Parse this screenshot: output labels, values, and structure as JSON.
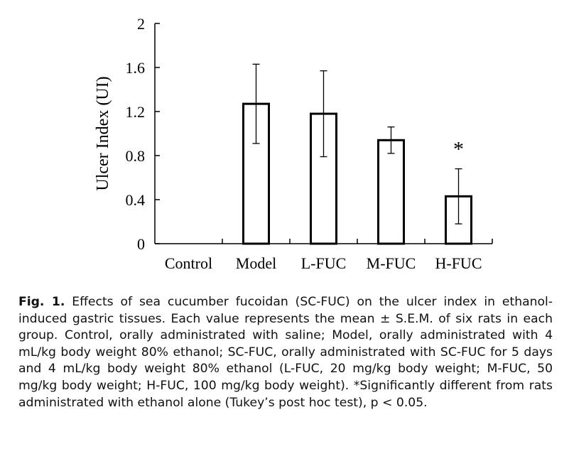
{
  "chart_data": {
    "type": "bar",
    "title": "",
    "xlabel": "",
    "ylabel": "Ulcer Index (UI)",
    "ylim": [
      0,
      2
    ],
    "yticks": [
      "0",
      "0.4",
      "0.8",
      "1.2",
      "1.6",
      "2"
    ],
    "categories": [
      "Control",
      "Model",
      "L-FUC",
      "M-FUC",
      "H-FUC"
    ],
    "values": [
      0,
      1.27,
      1.18,
      0.94,
      0.43
    ],
    "errors": [
      0,
      0.36,
      0.39,
      0.12,
      0.25
    ],
    "annotations": [
      "",
      "",
      "",
      "",
      "*"
    ],
    "bar_fill": "#ffffff",
    "bar_stroke": "#000000",
    "grid": false,
    "legend": "none"
  },
  "caption": {
    "label": "Fig. 1.",
    "text": "Effects of sea cucumber fucoidan (SC-FUC) on the ulcer index in ethanol-induced gastric tissues. Each value represents the mean ± S.E.M. of six rats in each group. Control, orally administrated with saline; Model, orally administrated with 4 mL/kg body weight 80% ethanol; SC-FUC, orally administrated with SC-FUC for 5 days and 4 mL/kg body weight 80% ethanol (L-FUC, 20 mg/kg body weight; M-FUC, 50 mg/kg body weight; H-FUC, 100 mg/kg body weight). *Significantly different from rats administrated with ethanol alone (Tukey’s post hoc test), p < 0.05."
  }
}
